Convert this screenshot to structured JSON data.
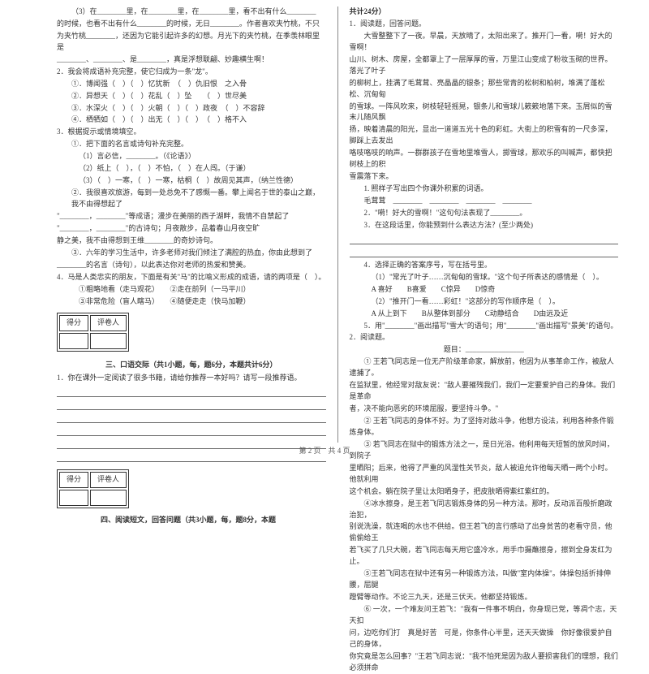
{
  "left": {
    "p1": "（3）在________里，在________里，在________里，看不出有什么________",
    "p2": "的时候，也看不出有什么________的时候，无日________。作者喜欢夹竹桃，不只",
    "p3": "为夹竹桃________，还因为它能引起许多的幻想。月光下的夹竹桃，在季羡林眼里是",
    "p4": "________、________、是________，真是浮想联翩、妙趣横生啊！",
    "q2": "2．我会将成语补充完整，使它归成为一条\"龙\"。",
    "q2a": "①．博闻强（　）（　）忆犹新　（　）仇旧恨　之入骨",
    "q2b": "②．异想天（　）（　）花乱（　）坠　　（　）世尽美",
    "q2c": "③．水深火（　）（　）火朝（　）（　）政夜　（　）不容辞",
    "q2d": "④．栖牺如（　）（　）出无（　）（　）　（　）格不入",
    "q3": "3．根据提示或情境填空。",
    "q3a": "①．把下面的名言或诗句补充完整。",
    "q3b": "（1）言必信，________。（《论语》）",
    "q3c": "（2）纸上（　），（　）不怕，（　）在人闯。（于谦）",
    "q3d": "（3）（　）一寒，（　）一寒，枯桐（　）故周见其声，（纳兰性德）",
    "q3e": "②．我很喜欢旅游，每到一处总免不了感慨一番。攀上闻名于世的泰山之巅，我不由得想起了",
    "q3f": "\"________，________\"等成语；漫步在美丽的西子湖畔，我情不自禁起了",
    "q3g": "\"________，________\"的古诗句；月夜散步，品着春山月夜空旷",
    "q3h": "静之美，我不由得想到王维________的奇妙诗句。",
    "q3i": "③．六年的学习生活中，许多老师对我们倾注了满腔的热血，你由此想到了",
    "q3j": "________的名言（诗句），以此表达你对老师的热爱和赞美。",
    "q4": "4．马是人类忠实的朋友，下面是有关\"马\"的比喻义形成的成语，请的两项是（　）。",
    "q4a": "①粗略地看（走马观花）　　②走在前列（一马平川）",
    "q4b": "③非常危险（盲人瞎马）　　④随便走走（快马加鞭）",
    "scoreHeader1": "得分",
    "scoreHeader2": "评卷人",
    "section3": "三、口语交际（共1小题，每，题6分，本题共计6分）",
    "s3q": "1．你在课外一定阅读了很多书籍，请给你推荐一本好吗？请写一段推荐语。",
    "section4": "四、阅读短文，回答问题（共3小题，每，题8分，本题"
  },
  "right": {
    "header": "共计24分）",
    "q1": "1．阅读题，回答问题。",
    "p1": "大雪整整下了一夜。早晨，天放晴了，太阳出来了。推开门一看，嗬！好大的雪啊！",
    "p2": "山川、树木、房屋，全都罩上了一层厚厚的雪，万里江山变成了粉妆玉砌的世界。落光了叶子",
    "p3": "的柳树上，挂满了毛茸茸、亮晶晶的银条；那些常青的松树和柏树，堆满了蓬松松、沉甸甸",
    "p4": "的雪球。一阵风吹来，树枝轻轻摇晃，银条儿和雪球儿簌簌地落下来。玉屑似的雪末儿随风飘",
    "p5": "扬，映着清晨的阳光，显出一道道五光十色的彩虹。大街上的积雪有的一尺多深，脚踩上去发出",
    "p6": "咯吱咯吱的响声。一群群孩子在雪地里堆雪人，掷雪球，那欢乐的叫喊声，都快把树枝上的积",
    "p7": "雪震落下来。",
    "q1a": "1. 照样子写出四个你课外积累的词语。",
    "q1b": "毛茸茸　________　________　________　________",
    "q1c": "2．\"嗬！好大的雪啊！\"这句句法表现了________。",
    "q1d": "3．在这段话里，你能预到什么表达方法？(至少两处)",
    "q1line": "________________________________________________",
    "q1e": "4．选择正确的答案序号，写在括号里。",
    "q1e1": "（1）\"常光了叶子……沉甸甸的雪球。\"这个句子所表达的感情是（　）。",
    "q1e1a": "A 喜好　　B喜爱　　C惊异　　D惊奇",
    "q1e2": "（2）\"推开门一看……彩虹！\"这部分的写作顺序是（　）。",
    "q1e2a": "A 从上到下　　B从整体到部分　　C动静结合　　D由远及近",
    "q1f": "5．用\"________\"画出描写\"雪大\"的语句；用\"________\"画出描写\"景美\"的语句。",
    "q2": "2．阅读题。",
    "title": "题目：________________",
    "t1": "① 王若飞同志是一位无产阶级革命家，解放前，他因为从事革命工作，被敌人逮捕了。",
    "t2": "在监狱里，他经常对敌友说：\"敌人要摧残我们，我们一定要爱护自己的身体。我们是革命",
    "t3": "者，决不能向恶劣的环境屈服，要坚持斗争。\"",
    "t4": "② 王若飞同志的身体不好。为了坚持对敌斗争，他想方设法，利用各种条件锻炼身体。",
    "t5": "③ 若飞同志在狱中的锻炼方法之一，是日光浴。他利用每天短暂的放风时间，到院子",
    "t6": "里晒阳；后来，他得了严重的风湿性关节炎，敌人被迫允许他每天晒一两个小时。他就利用",
    "t7": "这个机会。躺在院子里让太阳晒身子，把皮肤晒得紫红紫红的。",
    "t8": "④冰水擦身，是王若飞同志锻炼身体的另一种方法。那时，反动派百般折磨政治犯，",
    "t9": "别说洗澡，就连喝的水也不供给。但王若飞的言行感动了出身贫苦的老看守员，他偷偷给王",
    "t10": "若飞买了几只大碗，若飞同志每天用它盛冷水，用手巾摄蘸擦身，擦到全身发红为止。",
    "t11": "⑤王若飞同志在狱中还有另一种锻炼方法，叫做\"室内体操\"。体操包括折排伸腰，屈腿",
    "t12": "蹬臂等动作。不论三九天，还是三伏天。他都坚持锻炼。",
    "t13": "⑥ 一次，一个难友问王若飞：\"我有一件事不明白，你身现已党，等凋个志，天天扣",
    "t14": "问，边吃你们打　真是好苦　可是，你条件心半里，还天天做操　你好像很爱护自己的身体，",
    "t15": "你究竟是怎么回事？\"王若飞同志说：\"我不怕死是因为敌人要损害我们的理想，我们必须拼命"
  },
  "footer": "第 2 页　共 4 页"
}
